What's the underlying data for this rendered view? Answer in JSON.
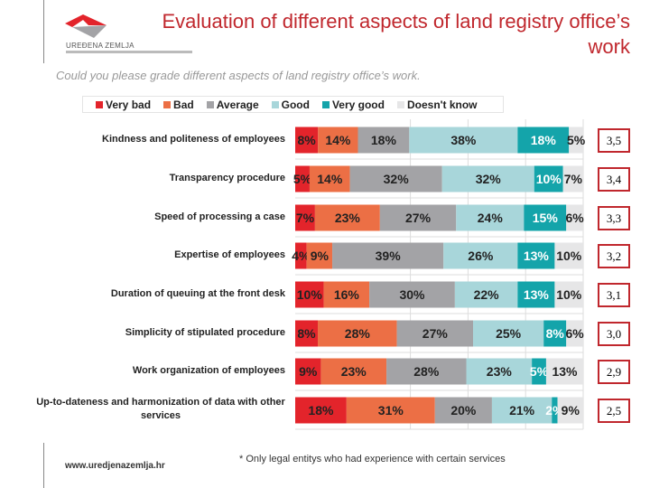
{
  "header": {
    "title": "Evaluation of different aspects of land registry office’s work",
    "subtitle": "Could you please grade different aspects of land registry office’s work.",
    "logo_text": "UREĐENA ZEMLJA"
  },
  "footer": {
    "url": "www.uredjenazemlja.hr",
    "note": "* Only legal entitys who had experience with certain services"
  },
  "chart_data": {
    "type": "bar",
    "orientation": "horizontal-stacked-100",
    "categories": [
      "Kindness and politeness of employees",
      "Transparency procedure",
      "Speed of processing a case",
      "Expertise of employees",
      "Duration of queuing at the front desk",
      "Simplicity of stipulated procedure",
      "Work organization of employees",
      "Up-to-dateness and harmonization of data with other services"
    ],
    "series": [
      {
        "name": "Very bad",
        "color": "#e3242b",
        "values": [
          8,
          5,
          7,
          4,
          10,
          8,
          9,
          18
        ]
      },
      {
        "name": "Bad",
        "color": "#ec6f45",
        "values": [
          14,
          14,
          23,
          9,
          16,
          28,
          23,
          31
        ]
      },
      {
        "name": "Average",
        "color": "#a3a3a6",
        "values": [
          18,
          32,
          27,
          39,
          30,
          27,
          28,
          20
        ]
      },
      {
        "name": "Good",
        "color": "#a8d6da",
        "values": [
          38,
          32,
          24,
          26,
          22,
          25,
          23,
          21
        ]
      },
      {
        "name": "Very good",
        "color": "#14a4aa",
        "values": [
          18,
          10,
          15,
          13,
          13,
          8,
          5,
          2
        ]
      },
      {
        "name": "Doesn't know",
        "color": "#e6e6e7",
        "values": [
          5,
          7,
          6,
          10,
          10,
          6,
          13,
          9
        ]
      }
    ],
    "scores": [
      "3,5",
      "3,4",
      "3,3",
      "3,2",
      "3,1",
      "3,0",
      "2,9",
      "2,5"
    ],
    "grid": true,
    "legend": "top"
  }
}
